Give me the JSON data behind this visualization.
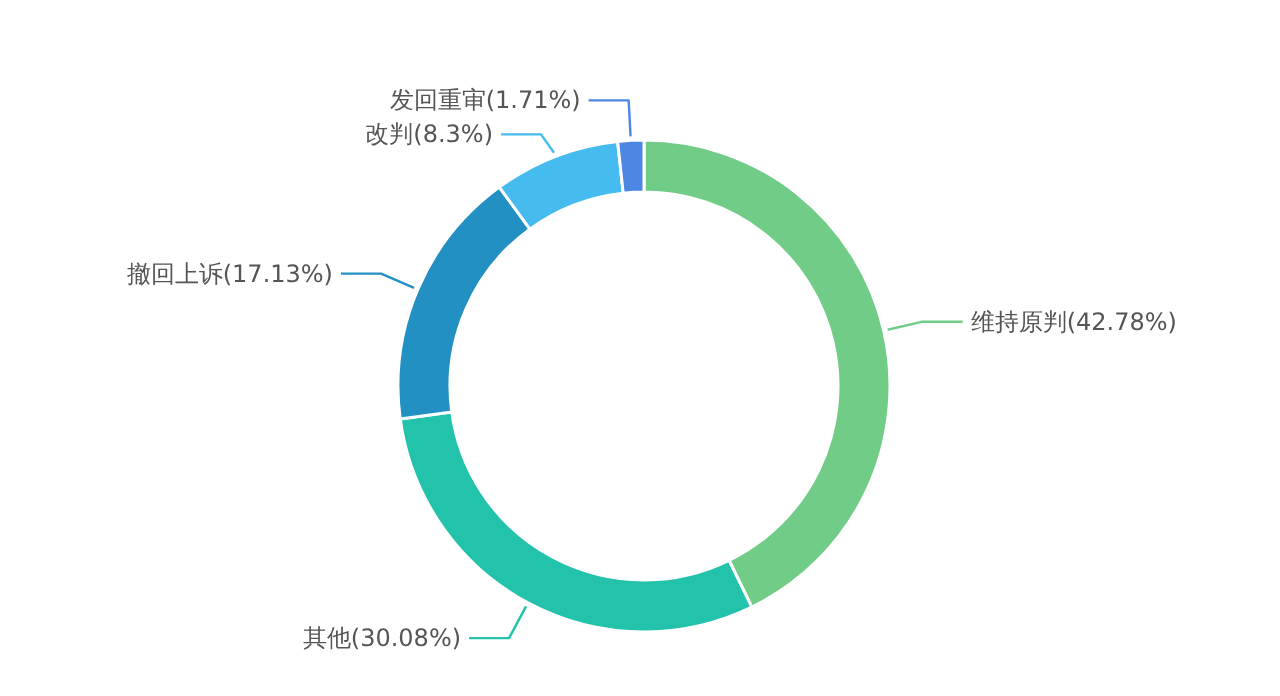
{
  "chart_data": {
    "type": "donut",
    "categories": [
      "维持原判",
      "其他",
      "撤回上诉",
      "改判",
      "发回重审"
    ],
    "values": [
      42.78,
      30.08,
      17.13,
      8.3,
      1.71
    ],
    "value_labels": [
      "(42.78%)",
      "(30.08%)",
      "(17.13%)",
      "(8.3%)",
      "(1.71%)"
    ],
    "colors": [
      "#70cc86",
      "#22c3aa",
      "#2290c3",
      "#46bbf0",
      "#4d86e3"
    ]
  }
}
